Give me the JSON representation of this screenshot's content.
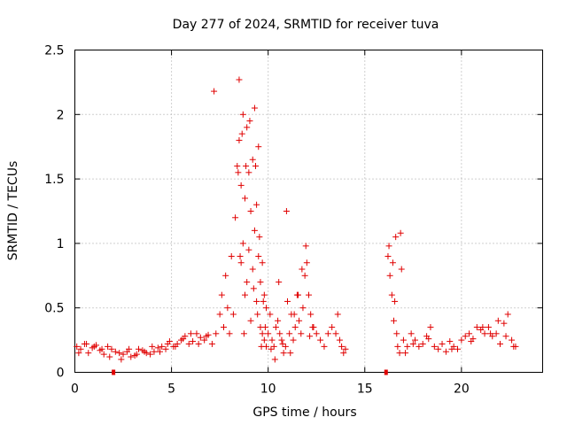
{
  "chart_data": {
    "type": "scatter",
    "title": "Day 277 of 2024, SRMTID for receiver tuva",
    "xlabel": "GPS time / hours",
    "ylabel": "SRMTID / TECUs",
    "xlim": [
      0,
      24.2
    ],
    "ylim": [
      0,
      2.5
    ],
    "xticks": [
      "0",
      "5",
      "10",
      "15",
      "20"
    ],
    "yticks": [
      "0",
      "0.5",
      "1",
      "1.5",
      "2",
      "2.5"
    ],
    "grid": true,
    "marker": "plus",
    "series_color": "#e00000",
    "data_gaps_at_hours": [
      2.0,
      16.1
    ],
    "series": [
      {
        "name": "SRMTID",
        "x": [
          0.1,
          0.3,
          0.5,
          0.7,
          0.9,
          1.1,
          1.3,
          1.5,
          1.7,
          1.9,
          2.1,
          2.3,
          2.5,
          2.7,
          2.9,
          3.1,
          3.3,
          3.5,
          3.7,
          3.9,
          4.1,
          4.3,
          4.5,
          4.7,
          4.9,
          5.1,
          5.3,
          5.5,
          5.7,
          5.9,
          6.1,
          6.3,
          6.5,
          6.7,
          6.9,
          7.1,
          7.3,
          7.5,
          7.6,
          7.7,
          7.8,
          7.9,
          8.0,
          8.1,
          8.2,
          8.3,
          8.4,
          8.5,
          8.5,
          8.6,
          8.6,
          8.7,
          8.7,
          8.8,
          8.8,
          8.9,
          8.9,
          9.0,
          9.0,
          9.1,
          9.1,
          9.2,
          9.2,
          9.3,
          9.3,
          9.4,
          9.4,
          9.5,
          9.5,
          9.6,
          9.6,
          9.7,
          9.7,
          9.8,
          9.8,
          9.9,
          9.9,
          10.0,
          10.1,
          10.2,
          10.3,
          10.4,
          10.5,
          10.6,
          10.7,
          10.8,
          10.9,
          11.0,
          11.1,
          11.2,
          11.3,
          11.4,
          11.5,
          11.6,
          11.7,
          11.8,
          11.9,
          12.0,
          12.1,
          12.2,
          12.3,
          12.5,
          12.7,
          12.9,
          13.1,
          13.3,
          13.5,
          13.6,
          13.7,
          13.8,
          13.9,
          14.0,
          16.2,
          16.3,
          16.4,
          16.5,
          16.6,
          16.7,
          16.8,
          16.9,
          17.0,
          17.2,
          17.4,
          17.6,
          17.8,
          18.0,
          18.2,
          18.4,
          18.6,
          18.8,
          19.0,
          19.2,
          19.4,
          19.6,
          19.8,
          20.0,
          20.2,
          20.4,
          20.6,
          20.8,
          21.0,
          21.2,
          21.4,
          21.6,
          21.8,
          22.0,
          22.2,
          22.4,
          22.6,
          22.8,
          0.2,
          0.6,
          1.0,
          1.4,
          1.8,
          2.4,
          2.8,
          3.2,
          3.6,
          4.0,
          4.4,
          4.8,
          5.2,
          5.6,
          6.0,
          6.4,
          6.8,
          7.2,
          8.45,
          8.55,
          8.65,
          8.75,
          8.85,
          9.05,
          9.25,
          9.35,
          9.45,
          9.55,
          9.65,
          9.75,
          9.85,
          10.15,
          10.35,
          10.55,
          10.75,
          10.95,
          11.15,
          11.35,
          11.55,
          11.75,
          11.95,
          12.15,
          12.35,
          16.25,
          16.45,
          16.55,
          16.65,
          16.85,
          17.1,
          17.5,
          18.3,
          19.5,
          20.5,
          21.1,
          21.5,
          21.9,
          22.3,
          22.7
        ],
        "y": [
          0.2,
          0.18,
          0.22,
          0.15,
          0.19,
          0.21,
          0.17,
          0.14,
          0.2,
          0.18,
          0.16,
          0.15,
          0.14,
          0.16,
          0.12,
          0.13,
          0.18,
          0.17,
          0.15,
          0.14,
          0.16,
          0.19,
          0.2,
          0.18,
          0.24,
          0.2,
          0.22,
          0.25,
          0.28,
          0.22,
          0.24,
          0.3,
          0.27,
          0.25,
          0.29,
          0.22,
          0.3,
          0.45,
          0.6,
          0.35,
          0.75,
          0.5,
          0.3,
          0.9,
          0.45,
          1.2,
          1.6,
          2.27,
          1.8,
          1.45,
          0.85,
          2.0,
          1.0,
          1.35,
          0.6,
          1.9,
          0.7,
          1.55,
          0.95,
          1.25,
          0.4,
          1.65,
          0.8,
          2.05,
          1.1,
          1.3,
          0.55,
          1.75,
          0.9,
          0.7,
          0.35,
          0.85,
          0.3,
          0.6,
          0.25,
          0.5,
          0.2,
          0.3,
          0.45,
          0.25,
          0.2,
          0.35,
          0.4,
          0.3,
          0.25,
          0.15,
          0.2,
          0.55,
          0.3,
          0.45,
          0.25,
          0.35,
          0.6,
          0.4,
          0.3,
          0.5,
          0.75,
          0.85,
          0.6,
          0.45,
          0.35,
          0.3,
          0.25,
          0.2,
          0.3,
          0.35,
          0.3,
          0.45,
          0.25,
          0.2,
          0.15,
          0.18,
          0.9,
          0.75,
          0.6,
          0.4,
          1.05,
          0.2,
          0.15,
          0.8,
          0.25,
          0.2,
          0.3,
          0.25,
          0.2,
          0.22,
          0.28,
          0.35,
          0.2,
          0.18,
          0.22,
          0.16,
          0.24,
          0.2,
          0.18,
          0.25,
          0.28,
          0.3,
          0.26,
          0.35,
          0.33,
          0.3,
          0.35,
          0.28,
          0.3,
          0.22,
          0.38,
          0.45,
          0.25,
          0.2,
          0.15,
          0.22,
          0.2,
          0.18,
          0.12,
          0.1,
          0.18,
          0.14,
          0.16,
          0.2,
          0.16,
          0.22,
          0.2,
          0.26,
          0.3,
          0.22,
          0.28,
          2.18,
          1.55,
          0.9,
          1.85,
          0.3,
          1.6,
          1.95,
          0.65,
          1.6,
          0.45,
          1.05,
          0.2,
          0.55,
          0.35,
          0.18,
          0.1,
          0.7,
          0.22,
          1.25,
          0.15,
          0.45,
          0.6,
          0.8,
          0.98,
          0.28,
          0.35,
          0.98,
          0.85,
          0.55,
          0.3,
          1.08,
          0.15,
          0.22,
          0.26,
          0.18,
          0.24,
          0.35,
          0.3,
          0.4,
          0.28,
          0.2
        ]
      }
    ]
  }
}
